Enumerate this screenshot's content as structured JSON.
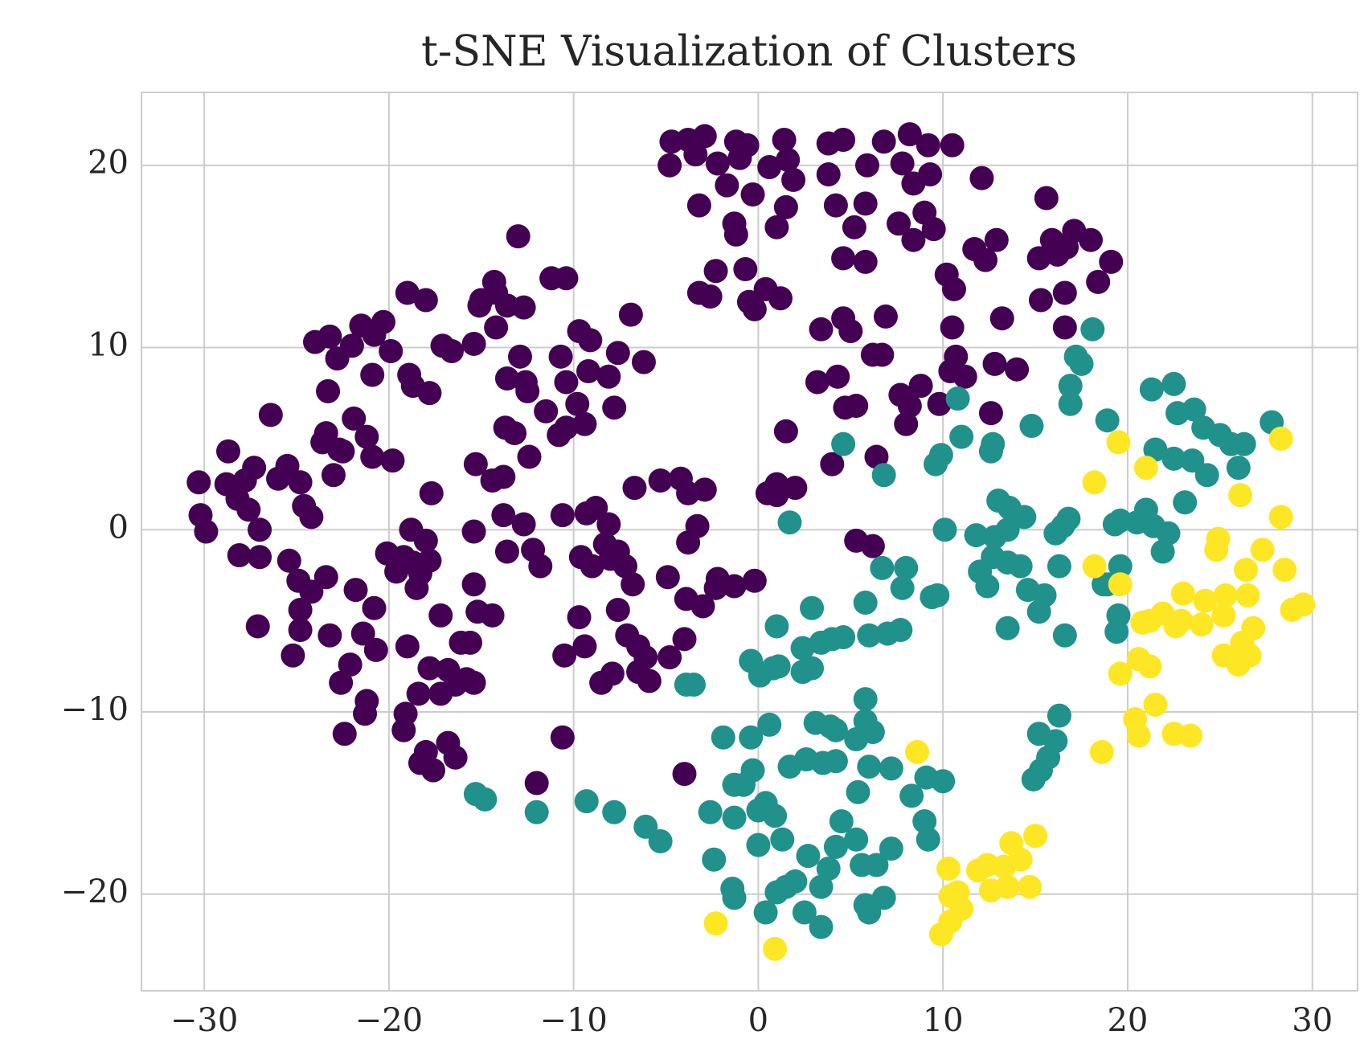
{
  "chart_data": {
    "type": "scatter",
    "title": "t-SNE Visualization of Clusters",
    "xlim": [
      -33.4,
      32.45
    ],
    "ylim": [
      -25.3,
      24.0
    ],
    "xticks": [
      {
        "value": -30,
        "label": "−30"
      },
      {
        "value": -20,
        "label": "−20"
      },
      {
        "value": -10,
        "label": "−10"
      },
      0,
      10,
      20,
      30
    ],
    "yticks": [
      {
        "value": -20,
        "label": "−20"
      },
      {
        "value": -10,
        "label": "−10"
      },
      0,
      10,
      20
    ],
    "grid": true,
    "series": [
      {
        "color": "#440154",
        "x": [
          -3.8,
          -4.7,
          -2.9,
          -3.4,
          -4.8,
          -2.2,
          -1.2,
          -0.6,
          -1.0,
          1.4,
          0.6,
          1.6,
          1.9,
          -1.7,
          -0.3,
          1.5,
          -3.2,
          -1.3,
          -1.2,
          1.0,
          -2.3,
          -0.7,
          0.4,
          -3.2,
          -0.5,
          1.2,
          -2.6,
          -0.2,
          3.8,
          4.6,
          5.9,
          6.8,
          8.2,
          7.8,
          9.2,
          10.5,
          9.3,
          8.4,
          3.8,
          4.2,
          5.2,
          5.8,
          7.6,
          9.0,
          9.5,
          8.4,
          4.6,
          5.8,
          10.2,
          10.6,
          11.7,
          12.3,
          12.9,
          12.1,
          15.6,
          15.9,
          16.7,
          17.1,
          18.0,
          15.2,
          16.2,
          15.3,
          16.6,
          19.1,
          18.4,
          16.6,
          13.2,
          10.5,
          3.4,
          4.6,
          5.0,
          6.9,
          6.2,
          6.7,
          4.3,
          3.2,
          4.7,
          5.3,
          7.7,
          8.8,
          8.2,
          9.8,
          10.7,
          11.2,
          10.4,
          12.8,
          14.0,
          12.6,
          8.0,
          6.4,
          4.0,
          1.5,
          0.5,
          1.0,
          2.0,
          1.0,
          -5.3,
          -4.2,
          -3.8,
          -2.9,
          -3.3,
          -3.8,
          -4.9,
          -3.9,
          -3.0,
          -2.3,
          -2.2,
          -1.3,
          -0.2,
          -4.0,
          -4.8,
          5.3,
          6.2,
          -30.3,
          -30.2,
          -29.9,
          -28.8,
          -28.2,
          -27.8,
          -27.3,
          -27.6,
          -28.7,
          -27.0,
          -26.4,
          -25.5,
          -26.0,
          -24.8,
          -24.6,
          -24.2,
          -23.6,
          -23.4,
          -23.0,
          -23.3,
          -22.7,
          -24.0,
          -23.2,
          -22.0,
          -21.5,
          -22.8,
          -20.8,
          -20.3,
          -20.9,
          -19.9,
          -18.9,
          -18.7,
          -17.8,
          -19.0,
          -18.0,
          -17.1,
          -16.6,
          -15.4,
          -14.2,
          -15.1,
          -14.2,
          -13.6,
          -12.7,
          -14.3,
          -15.0,
          -13.0,
          -11.2,
          -10.4,
          -9.7,
          -9.1,
          -7.6,
          -6.2,
          -6.9,
          -8.1,
          -7.8,
          -9.2,
          -10.4,
          -10.7,
          -12.9,
          -12.6,
          -13.6,
          -12.5,
          -11.5,
          -10.4,
          -10.8,
          -9.8,
          -9.4,
          -13.7,
          -13.2,
          -12.4,
          -13.8,
          -15.3,
          -14.4,
          -17.7,
          -18.8,
          -20.9,
          -21.9,
          -21.2,
          -22.5,
          -19.8,
          -28.1,
          -27.0,
          -25.4,
          -24.9,
          -24.2,
          -24.8,
          -23.4,
          -23.2,
          -24.8,
          -25.2,
          -27.1,
          -21.8,
          -20.8,
          -21.4,
          -20.7,
          -22.1,
          -22.6,
          -21.2,
          -21.3,
          -22.4,
          -19.6,
          -20.1,
          -19.2,
          -18.7,
          -18.3,
          -17.8,
          -18.0,
          -18.5,
          -19.0,
          -17.8,
          -17.2,
          -16.8,
          -16.1,
          -15.6,
          -16.4,
          -15.8,
          -15.4,
          -17.2,
          -15.4,
          -15.2,
          -14.4,
          -15.4,
          -13.8,
          -13.6,
          -12.2,
          -12.7,
          -11.8,
          -10.6,
          -9.3,
          -8.8,
          -8.1,
          -8.3,
          -9.6,
          -9.0,
          -8.0,
          -7.6,
          -7.2,
          -6.8,
          -7.6,
          -9.7,
          -9.4,
          -10.5,
          -7.1,
          -6.5,
          -6.1,
          -6.5,
          -5.9,
          -7.9,
          -8.5,
          -6.7,
          -10.6,
          -12.0,
          -4.0,
          -19.1,
          -19.2,
          -18.0,
          -18.3,
          -17.6,
          -16.8,
          -16.4,
          -18.4
        ],
        "y": [
          21.4,
          21.3,
          21.6,
          20.6,
          20.0,
          20.1,
          21.3,
          21.1,
          20.4,
          21.4,
          19.9,
          20.3,
          19.2,
          18.9,
          18.4,
          17.7,
          17.8,
          16.8,
          16.2,
          16.6,
          14.2,
          14.3,
          13.2,
          13.0,
          12.5,
          12.7,
          12.8,
          12.1,
          21.2,
          21.4,
          20.0,
          21.3,
          21.7,
          20.1,
          21.1,
          21.1,
          19.5,
          19.0,
          19.5,
          17.8,
          16.6,
          17.9,
          16.8,
          17.4,
          16.5,
          15.9,
          14.9,
          14.7,
          14.0,
          13.2,
          15.4,
          14.8,
          15.9,
          19.3,
          18.2,
          15.9,
          15.5,
          16.4,
          15.9,
          14.9,
          15.1,
          12.6,
          13.0,
          14.7,
          13.6,
          11.1,
          11.6,
          11.1,
          11.0,
          11.6,
          10.9,
          11.7,
          9.6,
          9.6,
          8.4,
          8.1,
          6.7,
          6.8,
          7.4,
          7.9,
          6.8,
          6.9,
          9.5,
          8.4,
          8.7,
          9.1,
          8.8,
          6.4,
          5.8,
          4.0,
          3.6,
          5.4,
          2.0,
          2.5,
          2.3,
          1.9,
          2.7,
          2.8,
          2.0,
          2.2,
          0.2,
          -0.7,
          -2.6,
          -3.8,
          -4.2,
          -3.2,
          -2.7,
          -3.1,
          -2.8,
          -6.0,
          -7.0,
          -0.6,
          -0.9,
          2.6,
          0.8,
          -0.1,
          2.5,
          1.7,
          2.7,
          3.4,
          1.1,
          4.3,
          0.0,
          6.3,
          3.5,
          2.8,
          2.6,
          1.3,
          0.7,
          4.8,
          5.3,
          3.0,
          7.6,
          4.4,
          10.3,
          10.6,
          10.1,
          11.2,
          9.4,
          10.7,
          11.4,
          8.5,
          9.8,
          8.5,
          7.9,
          7.5,
          13.0,
          12.6,
          10.1,
          9.8,
          10.2,
          11.1,
          12.3,
          13.0,
          12.3,
          12.2,
          13.6,
          12.6,
          16.1,
          13.8,
          13.8,
          10.9,
          10.4,
          9.7,
          9.2,
          11.8,
          8.4,
          6.7,
          8.7,
          8.1,
          9.5,
          9.5,
          8.1,
          8.3,
          7.6,
          6.5,
          5.6,
          5.2,
          6.9,
          5.8,
          5.6,
          5.3,
          4.0,
          2.9,
          3.6,
          2.7,
          2.0,
          0.0,
          4.0,
          6.1,
          5.1,
          4.3,
          3.8,
          -1.4,
          -1.5,
          -1.7,
          -2.8,
          -3.4,
          -4.4,
          -2.6,
          -5.8,
          -5.5,
          -6.9,
          -5.3,
          -3.3,
          -4.3,
          -5.7,
          -6.6,
          -7.4,
          -8.4,
          -9.4,
          -10.1,
          -11.2,
          -2.3,
          -1.3,
          -1.5,
          -1.8,
          -2.4,
          -1.7,
          -0.6,
          -3.2,
          -6.4,
          -7.6,
          -4.7,
          -7.7,
          -6.2,
          -6.2,
          -8.5,
          -8.2,
          -8.4,
          -9.0,
          -3.0,
          -4.5,
          -4.7,
          -0.1,
          0.8,
          -1.2,
          -1.1,
          0.3,
          -2.0,
          0.8,
          0.9,
          1.2,
          0.3,
          -0.8,
          -1.5,
          -2.0,
          -1.6,
          -1.2,
          -2.0,
          -3.0,
          -4.4,
          -4.8,
          -6.4,
          -6.9,
          -5.8,
          -6.4,
          -7.0,
          -7.8,
          -8.3,
          -7.9,
          -8.4,
          2.3,
          -11.4,
          -13.9,
          -13.4,
          -10.1,
          -11.0,
          -12.2,
          -12.8,
          -13.2,
          -11.7,
          -12.5,
          -9.0
        ]
      },
      {
        "color": "#21918c",
        "x": [
          18.1,
          17.2,
          16.9,
          16.9,
          17.5,
          21.3,
          22.5,
          22.7,
          23.6,
          24.1,
          25.0,
          25.6,
          26.3,
          27.8,
          26.0,
          24.3,
          23.5,
          22.5,
          21.5,
          18.9,
          23.1,
          21.0,
          21.4,
          20.5,
          19.3,
          19.6,
          22.2,
          21.9,
          19.6,
          18.9,
          19.5,
          19.4,
          13.0,
          13.6,
          14.4,
          13.5,
          12.8,
          11.8,
          10.1,
          12.7,
          13.5,
          14.2,
          14.6,
          12.0,
          12.4,
          9.7,
          9.4,
          8.0,
          6.7,
          7.8,
          5.8,
          16.1,
          16.5,
          16.8,
          16.3,
          15.5,
          15.2,
          16.6,
          13.5,
          4.6,
          6.8,
          9.6,
          9.9,
          11.0,
          12.6,
          12.7,
          14.8,
          10.8,
          1.7,
          1.0,
          2.9,
          2.4,
          2.9,
          3.4,
          4.0,
          4.6,
          6.0,
          7.0,
          7.7,
          -0.4,
          0.1,
          0.8,
          1.1,
          2.4,
          -3.9,
          -3.5,
          5.8,
          5.8,
          6.2,
          5.3,
          3.1,
          3.9,
          4.2,
          0.6,
          -0.4,
          -1.9,
          -0.3,
          -0.8,
          -1.3,
          1.7,
          2.6,
          3.5,
          4.2,
          5.4,
          6.0,
          7.2,
          8.3,
          9.1,
          9.0,
          9.2,
          10.0,
          7.2,
          6.4,
          5.6,
          5.3,
          4.5,
          4.2,
          3.8,
          3.4,
          2.0,
          1.5,
          1.0,
          0.4,
          2.5,
          3.4,
          5.8,
          6.0,
          6.8,
          -2.6,
          -1.3,
          0.0,
          0.9,
          0.0,
          1.3,
          -2.4,
          -1.4,
          -1.3,
          0.4,
          2.7,
          -15.3,
          -14.8,
          -12.0,
          -9.3,
          -7.8,
          -6.1,
          -5.3,
          15.2,
          16.1,
          16.3,
          15.7,
          15.3,
          14.9,
          18.7
        ],
        "y": [
          11.0,
          9.5,
          7.9,
          6.9,
          9.1,
          7.7,
          8.0,
          6.4,
          6.6,
          5.6,
          5.2,
          4.7,
          4.7,
          5.9,
          3.4,
          3.0,
          3.8,
          3.9,
          4.4,
          6.0,
          1.5,
          1.1,
          0.2,
          0.4,
          0.3,
          0.5,
          -0.2,
          -1.2,
          -2.0,
          -3.0,
          -4.7,
          -5.6,
          1.6,
          1.2,
          0.7,
          0.0,
          -0.4,
          -0.3,
          0.0,
          -1.5,
          -1.8,
          -2.0,
          -3.3,
          -2.3,
          -3.1,
          -3.6,
          -3.7,
          -2.1,
          -2.1,
          -3.2,
          -4.0,
          -0.2,
          0.2,
          0.6,
          -2.0,
          -3.6,
          -4.5,
          -5.8,
          -5.4,
          4.7,
          3.0,
          3.6,
          4.1,
          5.1,
          4.3,
          4.7,
          5.7,
          7.2,
          0.4,
          -5.3,
          -4.3,
          -6.5,
          -7.6,
          -6.2,
          -6.0,
          -5.9,
          -5.8,
          -5.7,
          -5.5,
          -7.2,
          -8.0,
          -7.6,
          -7.5,
          -7.8,
          -8.5,
          -8.5,
          -9.3,
          -10.5,
          -11.1,
          -11.5,
          -10.6,
          -10.8,
          -11.0,
          -10.7,
          -11.4,
          -11.4,
          -13.2,
          -14.0,
          -14.0,
          -13.0,
          -12.6,
          -12.8,
          -12.7,
          -14.4,
          -13.0,
          -13.1,
          -14.6,
          -13.6,
          -16.0,
          -17.0,
          -13.8,
          -17.5,
          -18.4,
          -18.4,
          -17.0,
          -16.0,
          -17.4,
          -18.6,
          -19.6,
          -19.3,
          -19.6,
          -19.9,
          -21.0,
          -21.0,
          -21.8,
          -20.6,
          -21.0,
          -20.2,
          -15.5,
          -15.8,
          -15.4,
          -15.7,
          -17.3,
          -17.0,
          -18.1,
          -19.7,
          -20.2,
          -15.0,
          -17.9,
          -14.5,
          -14.8,
          -15.5,
          -14.9,
          -15.5,
          -16.3,
          -17.1,
          -11.2,
          -11.6,
          -10.2,
          -12.5,
          -13.2,
          -13.7,
          -3.0
        ]
      },
      {
        "color": "#fde725",
        "x": [
          28.3,
          19.5,
          21.0,
          18.2,
          26.1,
          28.3,
          24.9,
          24.8,
          27.3,
          28.5,
          26.4,
          18.2,
          19.6,
          23.0,
          24.2,
          25.3,
          26.5,
          25.2,
          24.0,
          22.9,
          22.6,
          21.9,
          21.2,
          20.8,
          28.9,
          29.5,
          26.8,
          26.2,
          26.6,
          25.2,
          26.0,
          20.6,
          21.2,
          19.6,
          21.5,
          20.4,
          20.6,
          22.5,
          23.4,
          18.6,
          8.6,
          15.0,
          13.7,
          14.2,
          13.3,
          12.4,
          11.9,
          10.3,
          13.5,
          12.6,
          14.7,
          10.4,
          10.8,
          11.0,
          10.4,
          9.9,
          -2.3,
          0.9
        ],
        "y": [
          5.0,
          4.8,
          3.4,
          2.6,
          1.9,
          0.7,
          -0.5,
          -1.1,
          -1.1,
          -2.2,
          -2.2,
          -2.0,
          -3.0,
          -3.5,
          -3.9,
          -3.6,
          -3.6,
          -4.7,
          -5.2,
          -5.0,
          -5.3,
          -4.6,
          -5.0,
          -5.1,
          -4.4,
          -4.1,
          -5.4,
          -6.2,
          -6.9,
          -6.9,
          -7.4,
          -7.1,
          -7.5,
          -7.9,
          -9.6,
          -10.4,
          -11.3,
          -11.2,
          -11.3,
          -12.2,
          -12.2,
          -16.8,
          -17.2,
          -18.1,
          -18.5,
          -18.4,
          -18.7,
          -18.6,
          -19.6,
          -19.8,
          -19.6,
          -20.1,
          -19.9,
          -20.8,
          -21.5,
          -22.2,
          -21.6,
          -23.0
        ]
      }
    ]
  }
}
